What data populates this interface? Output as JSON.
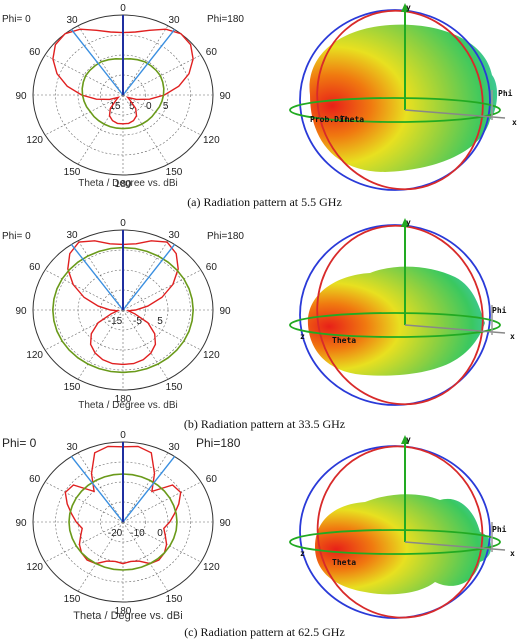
{
  "chart_data": [
    {
      "type": "polar",
      "caption": "(a) Radiation pattern at 5.5 GHz",
      "phi_left": "Phi=  0",
      "phi_right": "Phi=180",
      "xlabel": "Theta / Degree vs. dBi",
      "angle_ticks": [
        "0",
        "30",
        "60",
        "90",
        "120",
        "150",
        "180",
        "150",
        "120",
        "90",
        "60",
        "30"
      ],
      "radial_ticks": [
        "15",
        "5",
        "0",
        "5"
      ],
      "series": [
        {
          "values": [
            0.78,
            0.8,
            0.86,
            0.95,
            1.0,
            0.98,
            0.9,
            0.78,
            0.63,
            0.46,
            0.3,
            0.16,
            0.06,
            0.1,
            0.22,
            0.3,
            0.34,
            0.36,
            0.36,
            0.36,
            0.34,
            0.3,
            0.22,
            0.1,
            0.06,
            0.16,
            0.3,
            0.46,
            0.63,
            0.78,
            0.9,
            0.98,
            1.0,
            0.95,
            0.86,
            0.8
          ]
        },
        {
          "values": [
            0.45,
            0.46,
            0.47,
            0.48,
            0.48,
            0.48,
            0.48,
            0.47,
            0.46,
            0.45,
            0.44,
            0.43,
            0.42,
            0.42,
            0.42,
            0.42,
            0.42,
            0.42,
            0.42,
            0.42,
            0.42,
            0.42,
            0.42,
            0.42,
            0.42,
            0.43,
            0.44,
            0.45,
            0.46,
            0.47,
            0.48,
            0.48,
            0.48,
            0.48,
            0.47,
            0.46
          ]
        }
      ],
      "sphere_labels": [
        "Prob.Dir.",
        "Theta",
        "Phi",
        "x",
        "y"
      ]
    },
    {
      "type": "polar",
      "caption": "(b) Radiation pattern at 33.5 GHz",
      "phi_left": "Phi=  0",
      "phi_right": "Phi=180",
      "xlabel": "Theta / Degree vs. dBi",
      "angle_ticks": [
        "0",
        "30",
        "60",
        "90",
        "120",
        "150",
        "180",
        "150",
        "120",
        "90",
        "60",
        "30"
      ],
      "radial_ticks": [
        "-15",
        "-5",
        "5"
      ],
      "series": [
        {
          "values": [
            0.82,
            0.84,
            0.92,
            0.98,
            0.92,
            0.8,
            0.64,
            0.46,
            0.28,
            0.14,
            0.06,
            0.14,
            0.32,
            0.46,
            0.56,
            0.62,
            0.66,
            0.68,
            0.68,
            0.68,
            0.66,
            0.62,
            0.56,
            0.46,
            0.32,
            0.14,
            0.06,
            0.14,
            0.28,
            0.46,
            0.64,
            0.8,
            0.92,
            0.98,
            0.92,
            0.84
          ]
        },
        {
          "values": [
            0.78,
            0.78,
            0.78,
            0.78,
            0.78,
            0.78,
            0.78,
            0.78,
            0.78,
            0.78,
            0.78,
            0.78,
            0.78,
            0.78,
            0.78,
            0.78,
            0.78,
            0.78,
            0.78,
            0.78,
            0.78,
            0.78,
            0.78,
            0.78,
            0.78,
            0.78,
            0.78,
            0.78,
            0.78,
            0.78,
            0.78,
            0.78,
            0.78,
            0.78,
            0.78,
            0.78
          ]
        }
      ],
      "sphere_labels": [
        "Theta",
        "Phi",
        "x",
        "y",
        "z"
      ]
    },
    {
      "type": "polar",
      "caption": "(c) Radiation pattern at 62.5 GHz",
      "phi_left": "Phi=  0",
      "phi_right": "Phi=180",
      "xlabel": "Theta / Degree vs. dBi",
      "angle_ticks": [
        "0",
        "30",
        "60",
        "90",
        "120",
        "150",
        "180",
        "150",
        "120",
        "90",
        "60",
        "30"
      ],
      "radial_ticks": [
        "-20",
        "-10",
        "0"
      ],
      "series": [
        {
          "values": [
            0.94,
            0.96,
            0.92,
            0.7,
            0.5,
            0.72,
            0.74,
            0.66,
            0.58,
            0.52,
            0.46,
            0.5,
            0.56,
            0.6,
            0.62,
            0.6,
            0.52,
            0.5,
            0.52,
            0.5,
            0.52,
            0.6,
            0.62,
            0.6,
            0.56,
            0.5,
            0.46,
            0.52,
            0.58,
            0.66,
            0.74,
            0.72,
            0.5,
            0.7,
            0.92,
            0.96
          ]
        },
        {
          "values": [
            0.6,
            0.6,
            0.6,
            0.6,
            0.6,
            0.6,
            0.6,
            0.6,
            0.6,
            0.6,
            0.6,
            0.6,
            0.6,
            0.6,
            0.6,
            0.6,
            0.6,
            0.6,
            0.6,
            0.6,
            0.6,
            0.6,
            0.6,
            0.6,
            0.6,
            0.6,
            0.6,
            0.6,
            0.6,
            0.6,
            0.6,
            0.6,
            0.6,
            0.6,
            0.6,
            0.6
          ]
        }
      ],
      "sphere_labels": [
        "Theta",
        "Phi",
        "x",
        "y",
        "z"
      ]
    }
  ],
  "colors": {
    "pattern_main": "#e02020",
    "pattern_ref": "#6a9a1a",
    "beam_line": "#3a8fe0",
    "zero_line": "#1f2fa0",
    "grid": "#666666",
    "ring_blue": "#2a3ad8",
    "ring_red": "#d82a2a",
    "ring_green": "#22aa22",
    "axis_arrow": "#22aa22"
  }
}
